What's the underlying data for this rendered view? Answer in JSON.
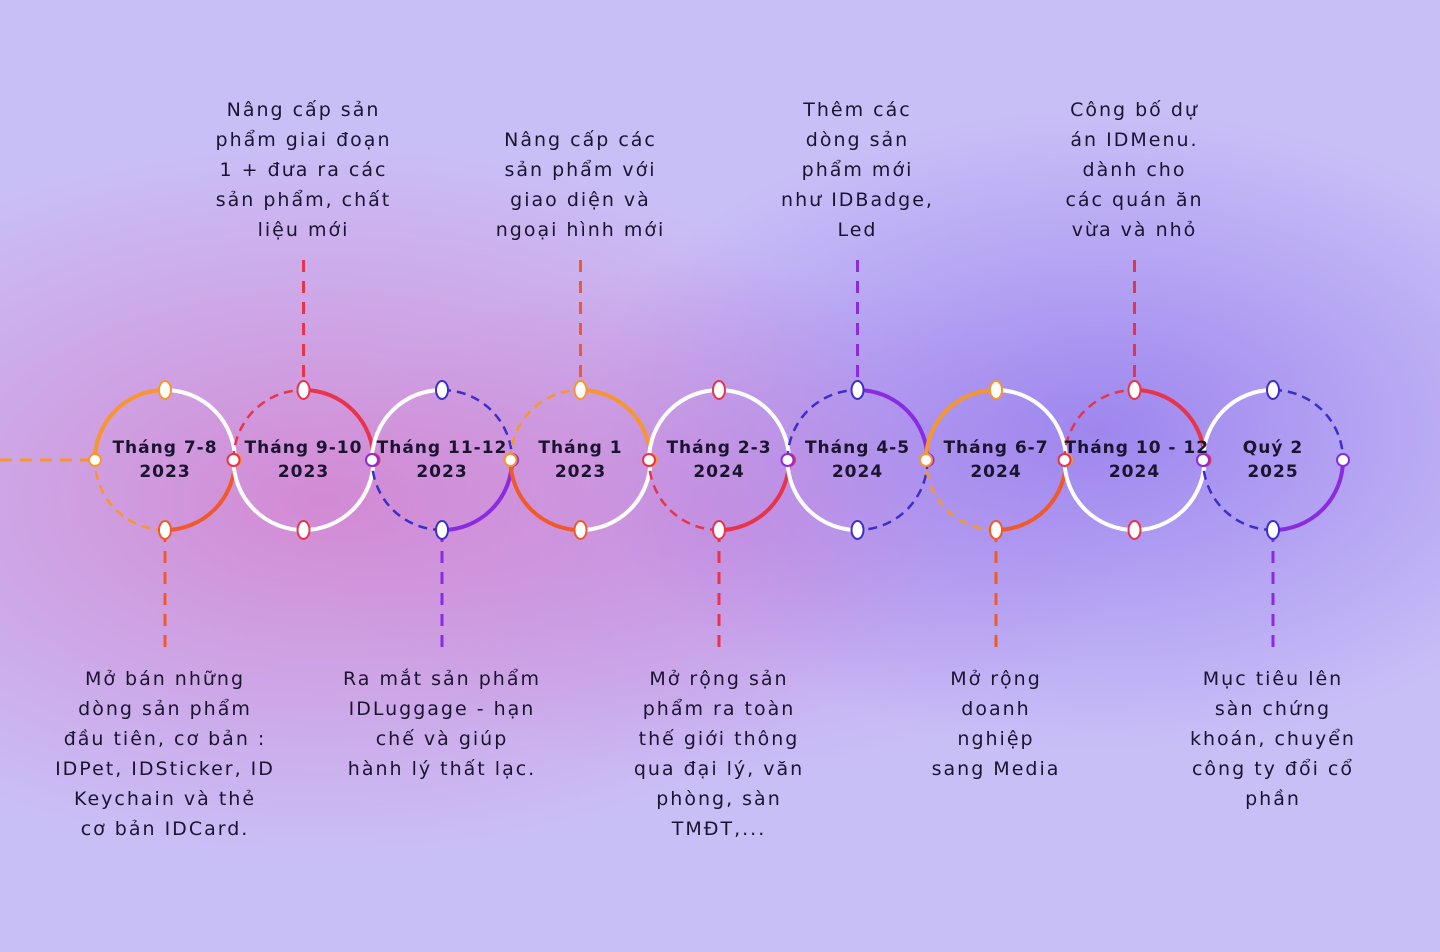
{
  "timeline": {
    "milestones": [
      {
        "id": "m1",
        "label": "Tháng 7-8\n2023",
        "theme": "orange",
        "note": {
          "position": "below",
          "lines": [
            "Mở bán những",
            "dòng sản phẩm",
            "đầu tiên, cơ bản :",
            "IDPet, IDSticker, ID",
            "Keychain và thẻ",
            "cơ bản IDCard."
          ]
        }
      },
      {
        "id": "m2",
        "label": "Tháng 9-10\n2023",
        "theme": "red",
        "note": {
          "position": "above",
          "lines": [
            "Nâng cấp sản",
            "phẩm giai đoạn",
            "1 + đưa ra các",
            "sản phẩm, chất",
            "liệu mới"
          ]
        }
      },
      {
        "id": "m3",
        "label": "Tháng 11-12\n2023",
        "theme": "purple",
        "note": {
          "position": "below",
          "lines": [
            "Ra mắt sản phẩm",
            "IDLuggage - hạn",
            "chế và giúp",
            "hành lý thất lạc."
          ]
        }
      },
      {
        "id": "m4",
        "label": "Tháng 1\n2023",
        "theme": "orange",
        "note": {
          "position": "above",
          "lines": [
            "Nâng cấp các",
            "sản phẩm với",
            "giao diện và",
            "ngoại hình mới"
          ]
        }
      },
      {
        "id": "m5",
        "label": "Tháng 2-3\n2024",
        "theme": "red",
        "note": {
          "position": "below",
          "lines": [
            "Mở rộng sản",
            "phẩm ra toàn",
            "thế giới thông",
            "qua đại lý, văn",
            "phòng, sàn",
            "TMĐT,..."
          ]
        }
      },
      {
        "id": "m6",
        "label": "Tháng 4-5\n2024",
        "theme": "purple",
        "note": {
          "position": "above",
          "lines": [
            "Thêm các",
            "dòng sản",
            "phẩm mới",
            "như IDBadge,",
            "Led"
          ]
        }
      },
      {
        "id": "m7",
        "label": "Tháng 6-7\n2024",
        "theme": "orange",
        "note": {
          "position": "below",
          "lines": [
            "Mở rộng",
            "doanh",
            "nghiệp",
            "sang Media"
          ]
        }
      },
      {
        "id": "m8",
        "label": "Tháng 10 - 12\n2024",
        "theme": "red",
        "note": {
          "position": "above",
          "lines": [
            "Công bố dự",
            "án IDMenu.",
            "dành cho",
            "các quán ăn",
            "vừa và nhỏ"
          ]
        }
      },
      {
        "id": "m9",
        "label": "Quý 2\n2025",
        "theme": "purple",
        "note": {
          "position": "below",
          "lines": [
            "Mục tiêu lên",
            "sàn chứng",
            "khoán, chuyển",
            "công ty đổi cổ",
            "phần"
          ]
        }
      }
    ]
  },
  "colors": {
    "orange": "#f7962a",
    "orange_deep": "#f05a2a",
    "red": "#e8334a",
    "purple": "#8a2be2",
    "blue_dash": "#3b2fc9",
    "white": "#ffffff"
  }
}
